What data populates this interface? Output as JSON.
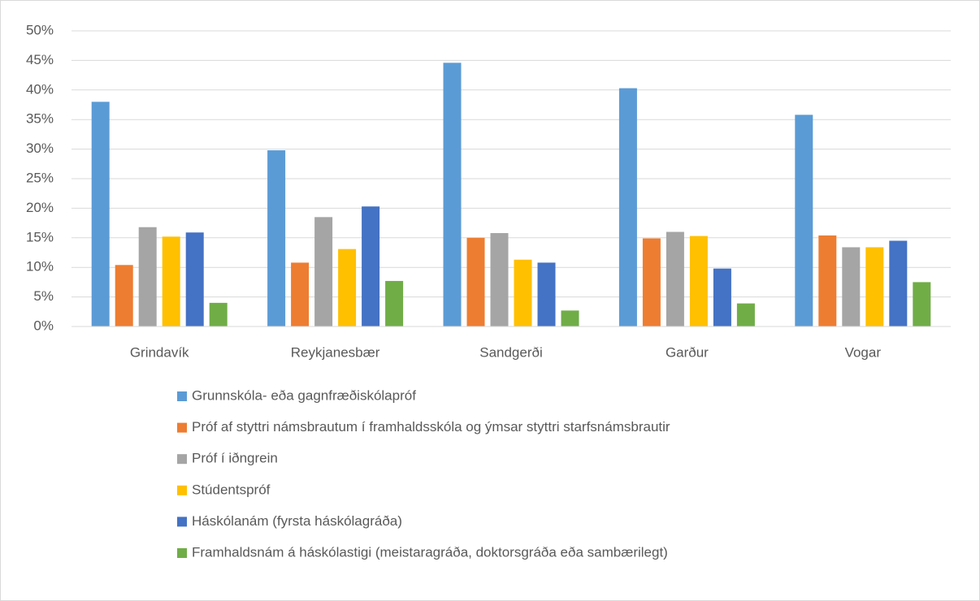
{
  "chart_data": {
    "type": "bar",
    "categories": [
      "Grindavík",
      "Reykjanesbær",
      "Sandgerði",
      "Garður",
      "Vogar"
    ],
    "series": [
      {
        "name": "Grunnskóla- eða gagnfræðiskólapróf",
        "color": "#5b9bd5",
        "values": [
          38.0,
          29.8,
          44.6,
          40.3,
          35.8
        ]
      },
      {
        "name": "Próf af styttri námsbrautum í framhaldsskóla og ýmsar styttri starfsnámsbrautir",
        "color": "#ed7d31",
        "values": [
          10.4,
          10.8,
          15.0,
          14.9,
          15.4
        ]
      },
      {
        "name": "Próf í iðngrein",
        "color": "#a5a5a5",
        "values": [
          16.8,
          18.5,
          15.8,
          16.0,
          13.4
        ]
      },
      {
        "name": "Stúdentspróf",
        "color": "#ffc000",
        "values": [
          15.2,
          13.1,
          11.3,
          15.3,
          13.4
        ]
      },
      {
        "name": "Háskólanám (fyrsta háskólagráða)",
        "color": "#4472c4",
        "values": [
          15.9,
          20.3,
          10.8,
          9.8,
          14.5
        ]
      },
      {
        "name": "Framhaldsnám á háskólastigi (meistaragráða, doktorsgráða eða sambærilegt)",
        "color": "#70ad47",
        "values": [
          4.0,
          7.7,
          2.7,
          3.9,
          7.5
        ]
      }
    ],
    "ylim": [
      0,
      50
    ],
    "yticks": [
      {
        "value": 0,
        "label": "0%"
      },
      {
        "value": 5,
        "label": "5%"
      },
      {
        "value": 10,
        "label": "10%"
      },
      {
        "value": 15,
        "label": "15%"
      },
      {
        "value": 20,
        "label": "20%"
      },
      {
        "value": 25,
        "label": "25%"
      },
      {
        "value": 30,
        "label": "30%"
      },
      {
        "value": 35,
        "label": "35%"
      },
      {
        "value": 40,
        "label": "40%"
      },
      {
        "value": 45,
        "label": "45%"
      },
      {
        "value": 50,
        "label": "50%"
      }
    ],
    "grid": true,
    "legend": "bottom"
  }
}
